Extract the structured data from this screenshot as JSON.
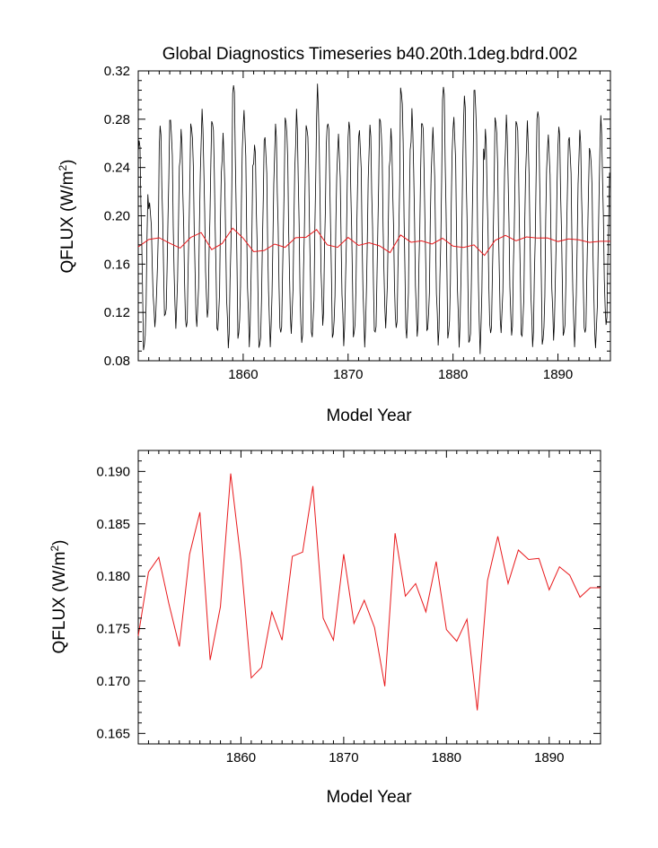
{
  "colors": {
    "monthly_line": "#000000",
    "annual_line": "#e8191c",
    "frame": "#000000"
  },
  "chart_data": [
    {
      "type": "line",
      "title": "Global Diagnostics Timeseries b40.20th.1deg.bdrd.002",
      "xlabel": "Model Year",
      "ylabel": "QFLUX (W/m2)",
      "ylabel_text": "QFLUX (W/m",
      "ylabel_exp": "2",
      "ylabel_close": ")",
      "xlim": [
        1850,
        1895
      ],
      "ylim": [
        0.08,
        0.32
      ],
      "xticks": [
        "1860",
        "1870",
        "1880",
        "1890"
      ],
      "xtick_values": [
        1860,
        1870,
        1880,
        1890
      ],
      "yticks": [
        "0.08",
        "0.12",
        "0.16",
        "0.20",
        "0.24",
        "0.28",
        "0.32"
      ],
      "ytick_values": [
        0.08,
        0.12,
        0.16,
        0.2,
        0.24,
        0.28,
        0.32
      ],
      "series": [
        {
          "role": "monthly",
          "start_year": 1850,
          "annual_max": [
            0.265,
            0.21,
            0.275,
            0.28,
            0.27,
            0.275,
            0.285,
            0.28,
            0.265,
            0.312,
            0.285,
            0.26,
            0.265,
            0.275,
            0.28,
            0.285,
            0.275,
            0.305,
            0.28,
            0.265,
            0.28,
            0.27,
            0.275,
            0.28,
            0.27,
            0.305,
            0.285,
            0.28,
            0.27,
            0.31,
            0.28,
            0.3,
            0.305,
            0.27,
            0.28,
            0.28,
            0.28,
            0.275,
            0.29,
            0.265,
            0.275,
            0.265,
            0.27,
            0.255,
            0.28
          ],
          "annual_min": [
            0.09,
            0.11,
            0.115,
            0.11,
            0.105,
            0.11,
            0.115,
            0.105,
            0.092,
            0.1,
            0.095,
            0.09,
            0.095,
            0.1,
            0.105,
            0.093,
            0.1,
            0.11,
            0.1,
            0.095,
            0.1,
            0.095,
            0.1,
            0.11,
            0.105,
            0.1,
            0.1,
            0.105,
            0.095,
            0.1,
            0.095,
            0.092,
            0.09,
            0.1,
            0.105,
            0.1,
            0.1,
            0.093,
            0.095,
            0.1,
            0.1,
            0.095,
            0.1,
            0.093,
            0.108
          ]
        },
        {
          "role": "annual",
          "x": [
            1850,
            1851,
            1852,
            1853,
            1854,
            1855,
            1856,
            1857,
            1858,
            1859,
            1860,
            1861,
            1862,
            1863,
            1864,
            1865,
            1866,
            1867,
            1868,
            1869,
            1870,
            1871,
            1872,
            1873,
            1874,
            1875,
            1876,
            1877,
            1878,
            1879,
            1880,
            1881,
            1882,
            1883,
            1884,
            1885,
            1886,
            1887,
            1888,
            1889,
            1890,
            1891,
            1892,
            1893,
            1894,
            1895
          ],
          "values": [
            0.1743,
            0.1804,
            0.1818,
            0.1773,
            0.1733,
            0.1821,
            0.1861,
            0.172,
            0.1771,
            0.1898,
            0.1815,
            0.1703,
            0.1713,
            0.1766,
            0.1739,
            0.1819,
            0.1823,
            0.1886,
            0.176,
            0.1739,
            0.1821,
            0.1755,
            0.1777,
            0.1751,
            0.1695,
            0.1841,
            0.1781,
            0.1793,
            0.1766,
            0.1814,
            0.1749,
            0.1738,
            0.1759,
            0.1672,
            0.1796,
            0.1838,
            0.1793,
            0.1825,
            0.1816,
            0.1817,
            0.1787,
            0.1809,
            0.1801,
            0.178,
            0.1789,
            0.1789
          ]
        }
      ]
    },
    {
      "type": "line",
      "title": "",
      "xlabel": "Model Year",
      "ylabel": "QFLUX (W/m2)",
      "ylabel_text": "QFLUX (W/m",
      "ylabel_exp": "2",
      "ylabel_close": ")",
      "xlim": [
        1850,
        1895
      ],
      "ylim": [
        0.164,
        0.192
      ],
      "xticks": [
        "1860",
        "1870",
        "1880",
        "1890"
      ],
      "xtick_values": [
        1860,
        1870,
        1880,
        1890
      ],
      "yticks": [
        "0.165",
        "0.170",
        "0.175",
        "0.180",
        "0.185",
        "0.190"
      ],
      "ytick_values": [
        0.165,
        0.17,
        0.175,
        0.18,
        0.185,
        0.19
      ],
      "series": [
        {
          "role": "annual",
          "x": [
            1850,
            1851,
            1852,
            1853,
            1854,
            1855,
            1856,
            1857,
            1858,
            1859,
            1860,
            1861,
            1862,
            1863,
            1864,
            1865,
            1866,
            1867,
            1868,
            1869,
            1870,
            1871,
            1872,
            1873,
            1874,
            1875,
            1876,
            1877,
            1878,
            1879,
            1880,
            1881,
            1882,
            1883,
            1884,
            1885,
            1886,
            1887,
            1888,
            1889,
            1890,
            1891,
            1892,
            1893,
            1894,
            1895
          ],
          "values": [
            0.1743,
            0.1804,
            0.1818,
            0.1773,
            0.1733,
            0.1821,
            0.1861,
            0.172,
            0.1771,
            0.1898,
            0.1815,
            0.1703,
            0.1713,
            0.1766,
            0.1739,
            0.1819,
            0.1823,
            0.1886,
            0.176,
            0.1739,
            0.1821,
            0.1755,
            0.1777,
            0.1751,
            0.1695,
            0.1841,
            0.1781,
            0.1793,
            0.1766,
            0.1814,
            0.1749,
            0.1738,
            0.1759,
            0.1672,
            0.1796,
            0.1838,
            0.1793,
            0.1825,
            0.1816,
            0.1817,
            0.1787,
            0.1809,
            0.1801,
            0.178,
            0.1789,
            0.1789
          ]
        }
      ]
    }
  ]
}
